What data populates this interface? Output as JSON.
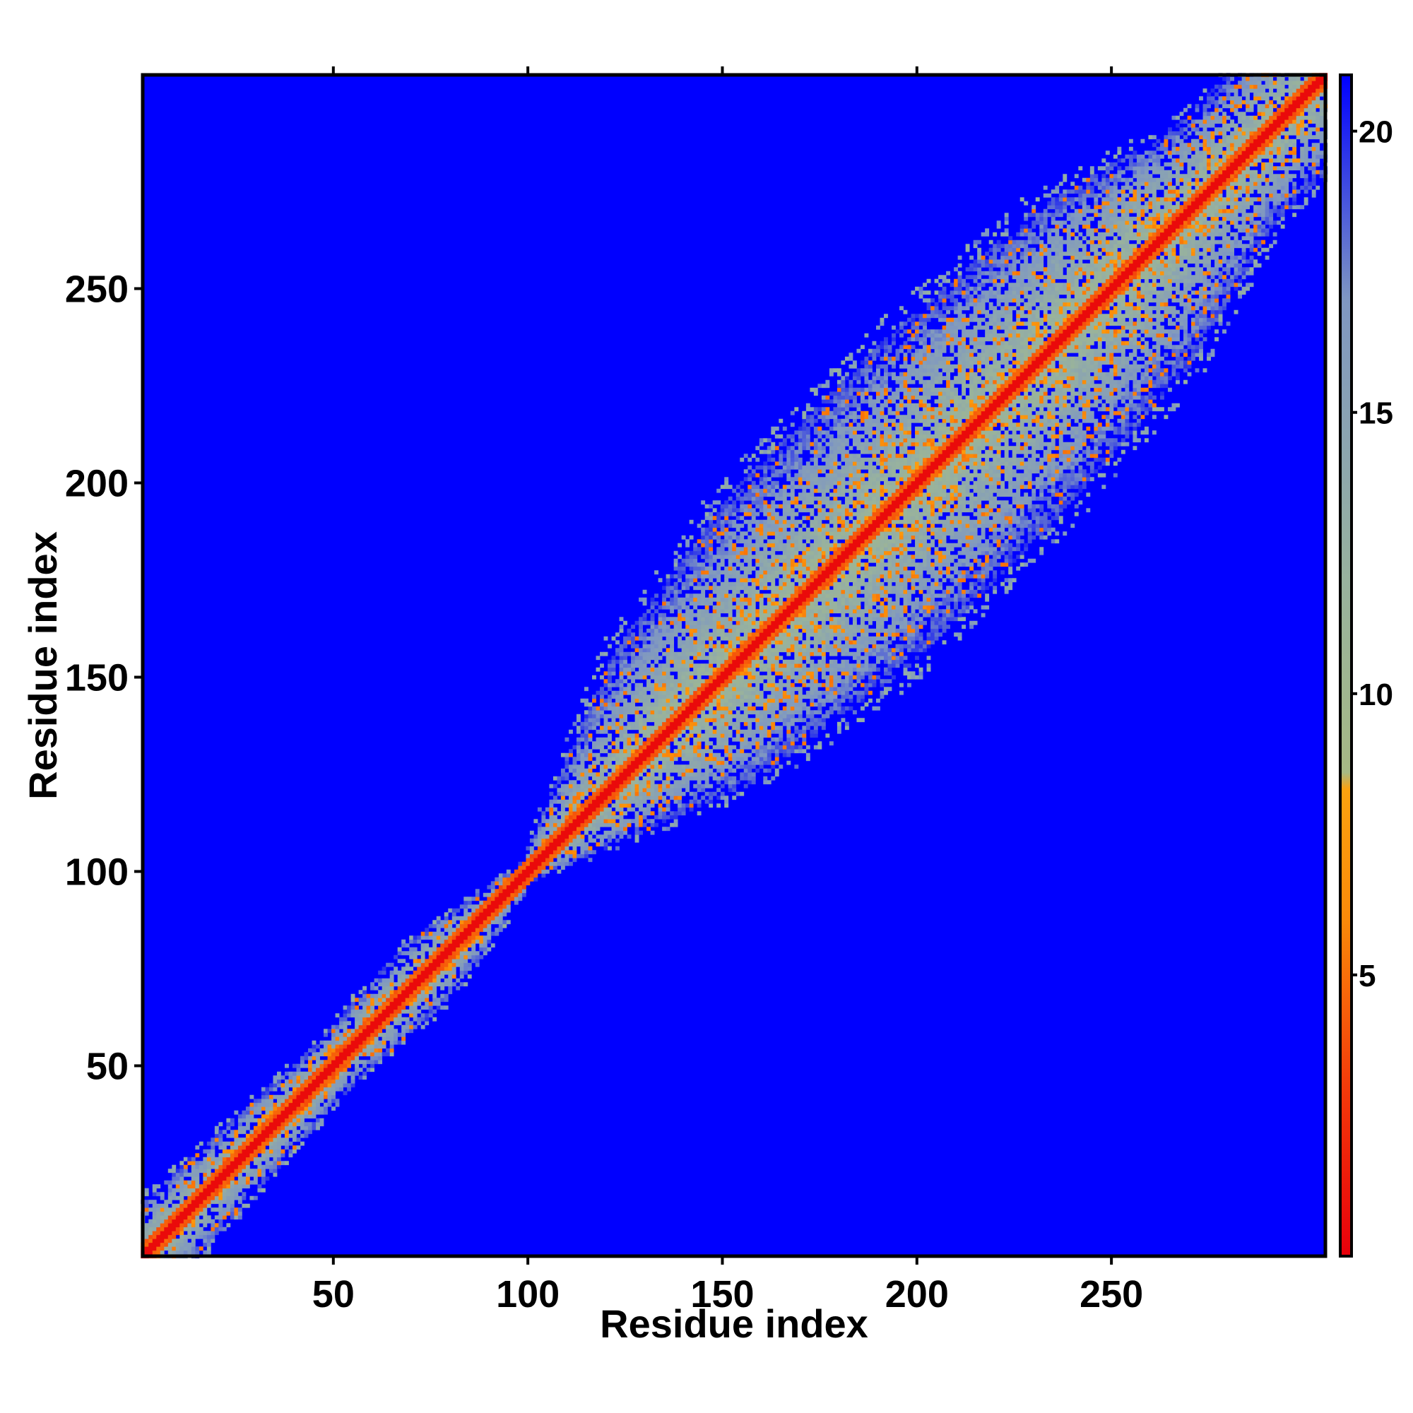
{
  "chart_data": {
    "type": "heatmap",
    "title": "",
    "xlabel": "Residue index",
    "ylabel": "Residue index",
    "n_residues": 305,
    "xlim": [
      1,
      305
    ],
    "ylim": [
      1,
      305
    ],
    "x_ticks": [
      50,
      100,
      150,
      200,
      250
    ],
    "y_ticks": [
      50,
      100,
      150,
      200,
      250
    ],
    "colorbar": {
      "ticks": [
        5,
        10,
        15,
        20
      ],
      "range": [
        0,
        21
      ],
      "stops": [
        {
          "value": 0,
          "color": "#e8000b"
        },
        {
          "value": 3,
          "color": "#f33a0a"
        },
        {
          "value": 6,
          "color": "#fb8a09"
        },
        {
          "value": 8.3,
          "color": "#fca20f"
        },
        {
          "value": 8.6,
          "color": "#a6b985"
        },
        {
          "value": 12,
          "color": "#98b29e"
        },
        {
          "value": 17,
          "color": "#7f97c2"
        },
        {
          "value": 21,
          "color": "#0000ff"
        }
      ],
      "background_value": 21
    },
    "contact_envelope": [
      {
        "center": [
          10,
          10
        ],
        "half_width": 14
      },
      {
        "center": [
          50,
          50
        ],
        "half_width": 10
      },
      {
        "center": [
          75,
          75
        ],
        "half_width": 13
      },
      {
        "center": [
          100,
          100
        ],
        "half_width": 4
      },
      {
        "center": [
          140,
          140
        ],
        "half_width": 35
      },
      {
        "center": [
          175,
          175
        ],
        "half_width": 45
      },
      {
        "center": [
          215,
          215
        ],
        "half_width": 45
      },
      {
        "center": [
          250,
          250
        ],
        "half_width": 40
      },
      {
        "center": [
          280,
          280
        ],
        "half_width": 25
      }
    ],
    "grid": false,
    "legend": "colorbar-right"
  }
}
